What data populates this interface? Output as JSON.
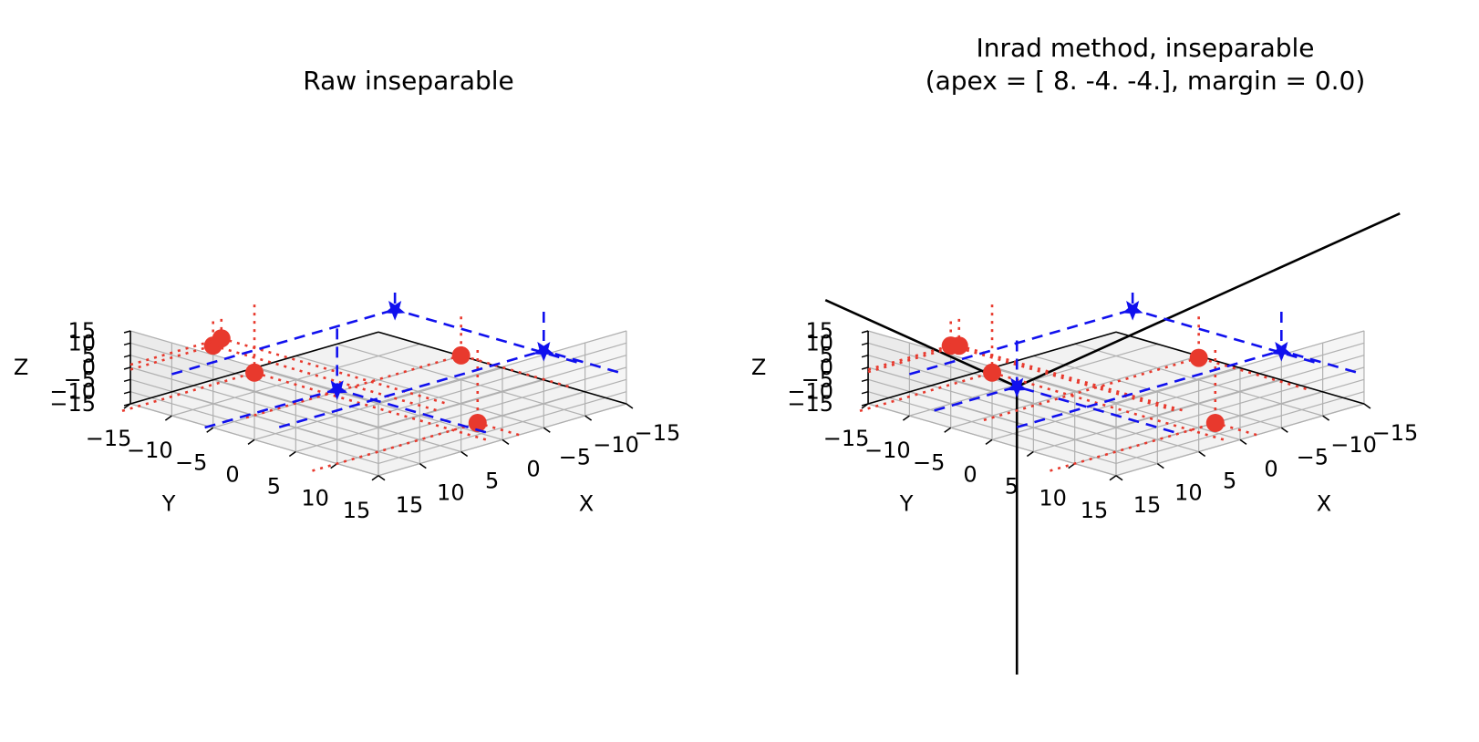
{
  "chart_data": [
    {
      "type": "scatter",
      "projection": "3d",
      "title": "Raw inseparable",
      "xlabel": "X",
      "ylabel": "Y",
      "zlabel": "Z",
      "xlim": [
        -15,
        15
      ],
      "ylim": [
        -15,
        15
      ],
      "zlim": [
        -15,
        15
      ],
      "ticks": [
        -15,
        -10,
        -5,
        0,
        5,
        10,
        15
      ],
      "tick_labels": [
        "−15",
        "−10",
        "−5",
        "0",
        "5",
        "10",
        "15"
      ],
      "grid": true,
      "series": [
        {
          "marker": "circle",
          "linestyle": "dotted",
          "color": "#e8392d",
          "points": [
            {
              "x": 8,
              "y": -12,
              "z": 5
            },
            {
              "x": 7,
              "y": -12,
              "z": 7
            },
            {
              "x": 2,
              "y": -13,
              "z": -13
            },
            {
              "x": -8,
              "y": 2,
              "z": -1
            },
            {
              "x": -2,
              "y": 10,
              "z": -15
            }
          ]
        },
        {
          "marker": "star",
          "linestyle": "dashed",
          "color": "#1010ee",
          "points": [
            {
              "x": 2,
              "y": -3,
              "z": -10
            },
            {
              "x": -9,
              "y": -7,
              "z": 8
            },
            {
              "x": -14,
              "y": 6,
              "z": -1
            }
          ]
        }
      ]
    },
    {
      "type": "scatter",
      "projection": "3d",
      "title": "Inrad method, inseparable\n(apex = [ 8. -4. -4.], margin = 0.0)",
      "title_lines": [
        "Inrad method, inseparable",
        "(apex = [ 8. -4. -4.], margin = 0.0)"
      ],
      "xlabel": "X",
      "ylabel": "Y",
      "zlabel": "Z",
      "xlim": [
        -15,
        15
      ],
      "ylim": [
        -15,
        15
      ],
      "zlim": [
        -15,
        15
      ],
      "ticks": [
        -15,
        -10,
        -5,
        0,
        5,
        10,
        15
      ],
      "tick_labels": [
        "−15",
        "−10",
        "−5",
        "0",
        "5",
        "10",
        "15"
      ],
      "grid": true,
      "apex": [
        8,
        -4,
        -4
      ],
      "series": [
        {
          "marker": "circle",
          "linestyle": "dotted",
          "color": "#e8392d",
          "points": [
            {
              "x": 8,
              "y": -12,
              "z": 5
            },
            {
              "x": 7,
              "y": -12,
              "z": 4
            },
            {
              "x": 2,
              "y": -13,
              "z": -13
            },
            {
              "x": -8,
              "y": 2,
              "z": -2
            },
            {
              "x": -2,
              "y": 10,
              "z": -15
            }
          ]
        },
        {
          "marker": "star",
          "linestyle": "dashed",
          "color": "#1010ee",
          "points": [
            {
              "x": 8,
              "y": -4,
              "z": -4
            },
            {
              "x": -9,
              "y": -7,
              "z": 8
            },
            {
              "x": -14,
              "y": 6,
              "z": -1
            }
          ]
        }
      ]
    }
  ]
}
